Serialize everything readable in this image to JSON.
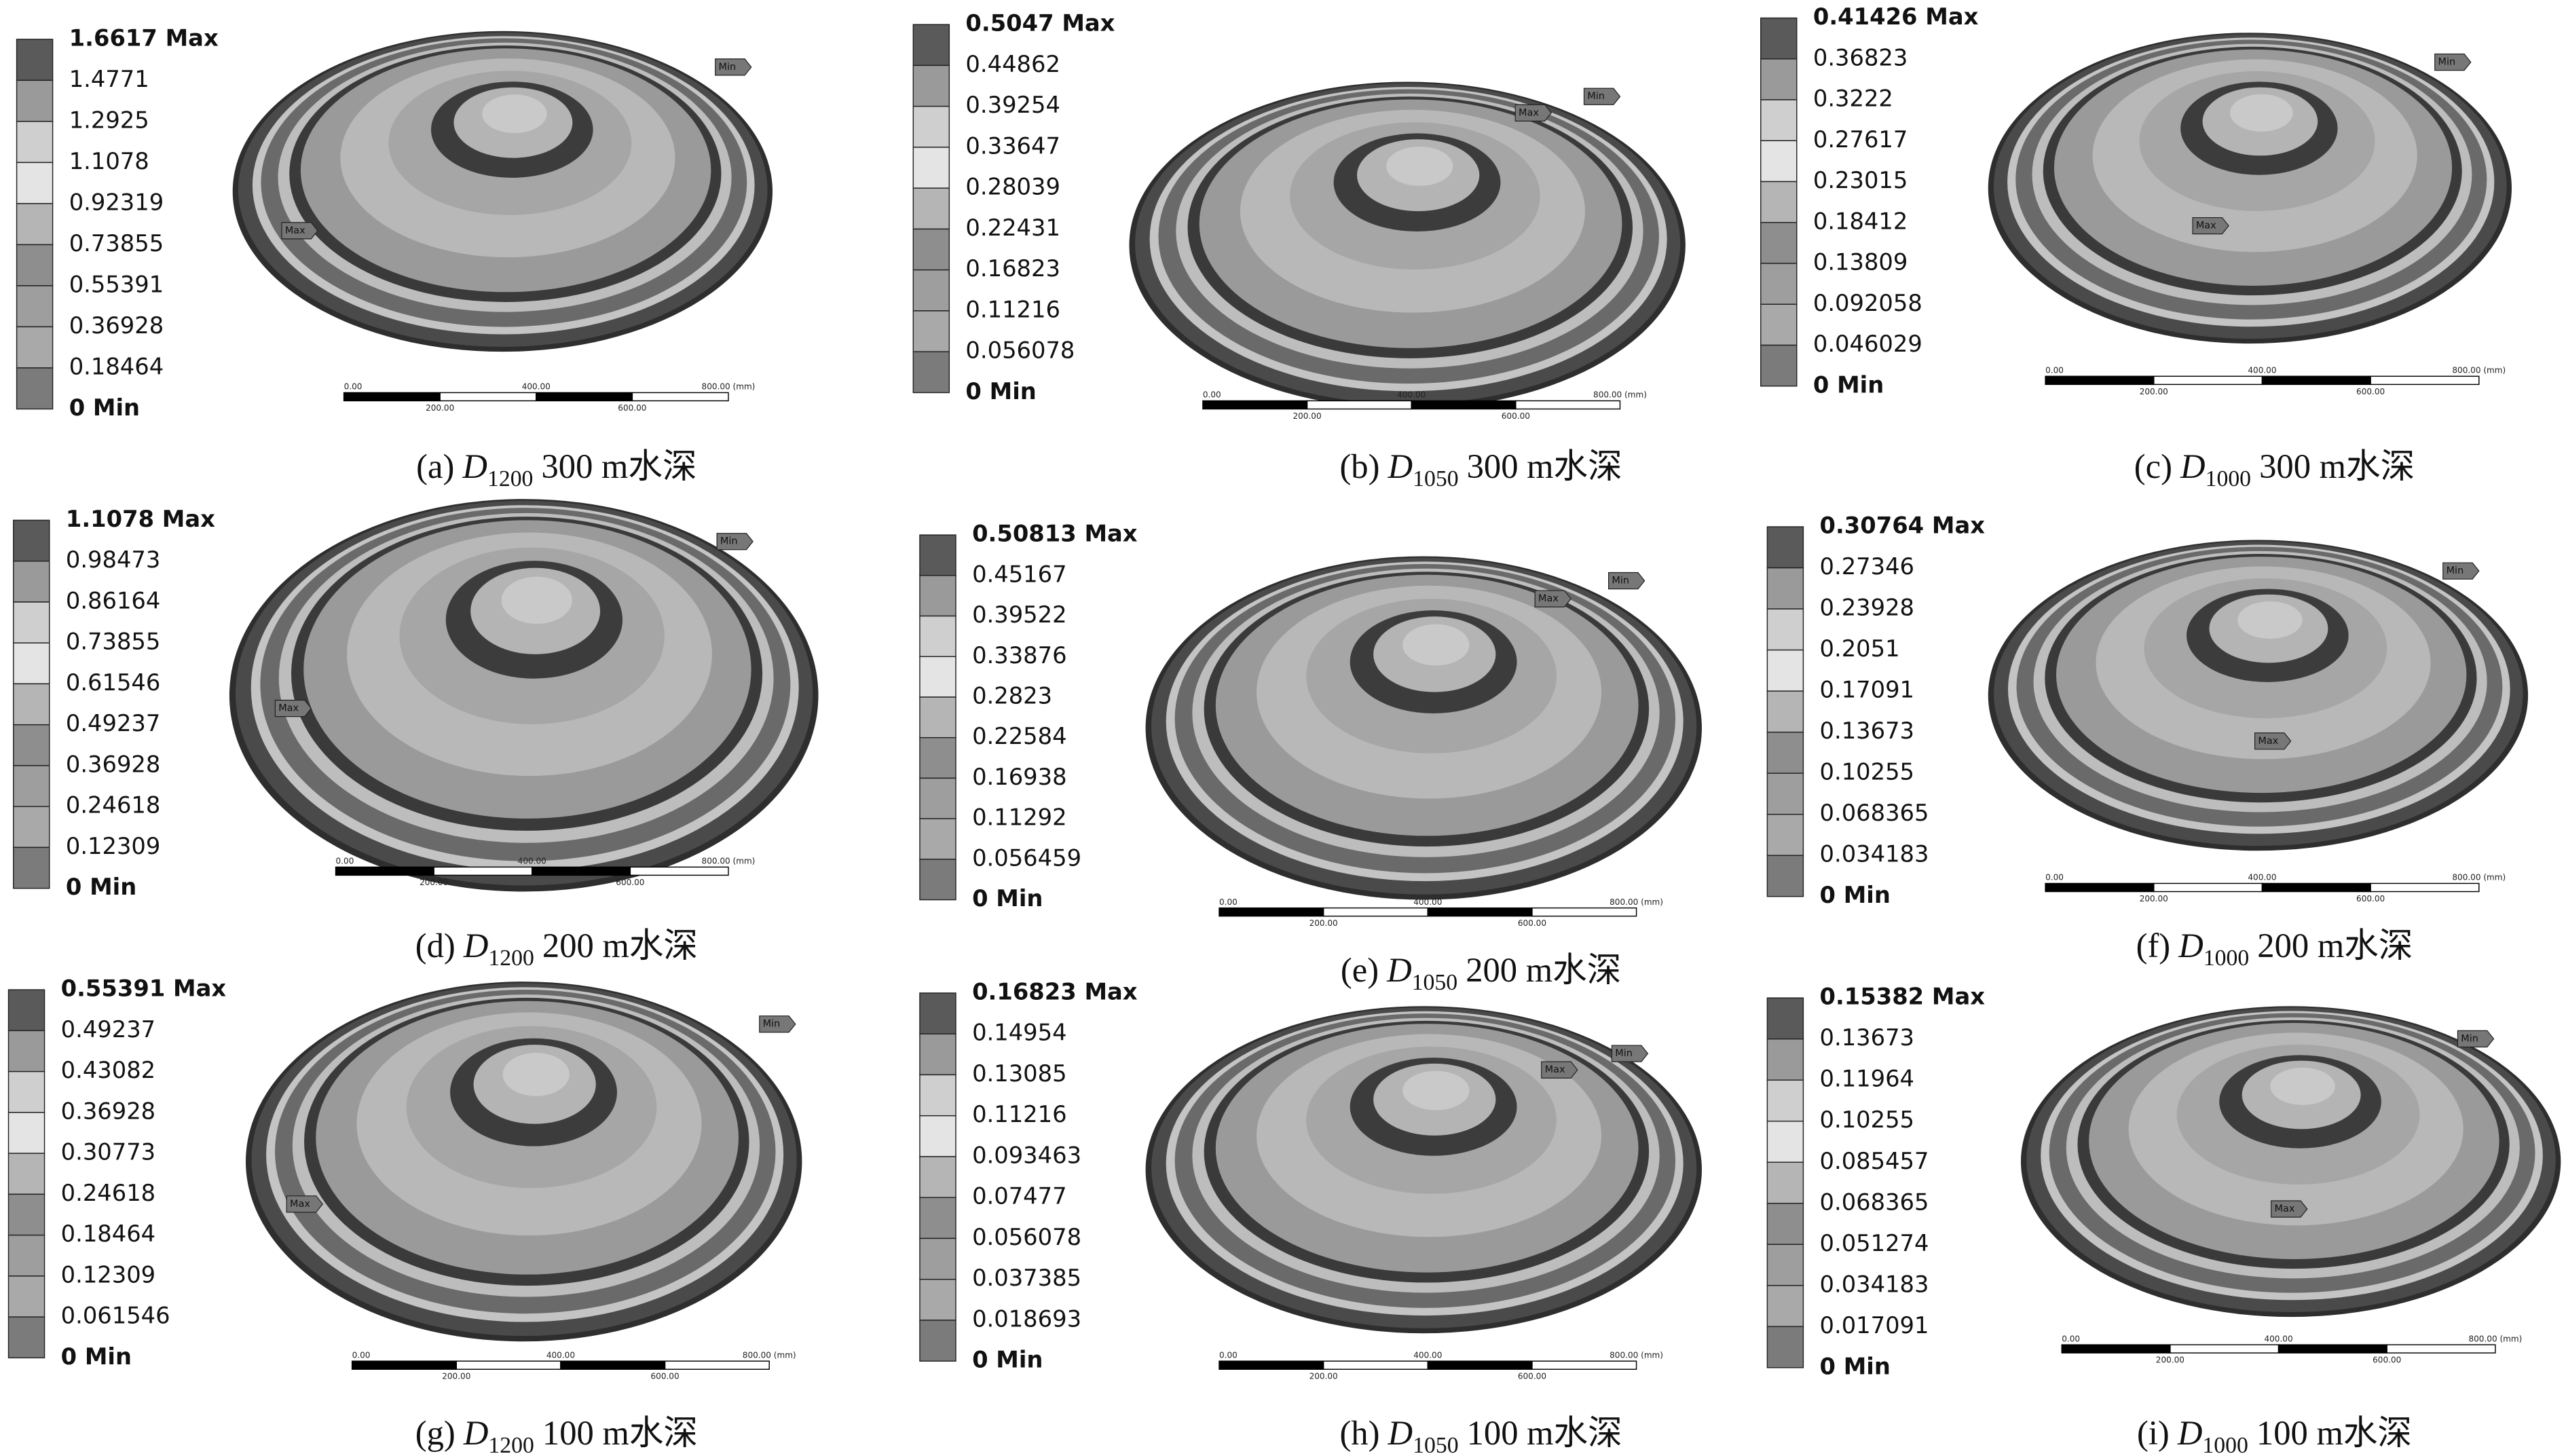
{
  "scale_bar": {
    "top_labels": [
      "0.00",
      "400.00",
      "800.00 (mm)"
    ],
    "bottom_labels": [
      "200.00",
      "600.00"
    ]
  },
  "panels": [
    {
      "legend": [
        "1.6617 Max",
        "1.4771",
        "1.2925",
        "1.1078",
        "0.92319",
        "0.73855",
        "0.55391",
        "0.36928",
        "0.18464",
        "0 Min"
      ],
      "markers": [
        "Min",
        "Max"
      ],
      "caption": {
        "label": "(a)",
        "symbol": "D",
        "subscript": "1200",
        "depth": "300 m水深"
      }
    },
    {
      "legend": [
        "0.5047 Max",
        "0.44862",
        "0.39254",
        "0.33647",
        "0.28039",
        "0.22431",
        "0.16823",
        "0.11216",
        "0.056078",
        "0 Min"
      ],
      "markers": [
        "Min",
        "Max"
      ],
      "caption": {
        "label": "(b)",
        "symbol": "D",
        "subscript": "1050",
        "depth": "300 m水深"
      }
    },
    {
      "legend": [
        "0.41426 Max",
        "0.36823",
        "0.3222",
        "0.27617",
        "0.23015",
        "0.18412",
        "0.13809",
        "0.092058",
        "0.046029",
        "0 Min"
      ],
      "markers": [
        "Min",
        "Max"
      ],
      "caption": {
        "label": "(c)",
        "symbol": "D",
        "subscript": "1000",
        "depth": "300 m水深"
      }
    },
    {
      "legend": [
        "1.1078 Max",
        "0.98473",
        "0.86164",
        "0.73855",
        "0.61546",
        "0.49237",
        "0.36928",
        "0.24618",
        "0.12309",
        "0 Min"
      ],
      "markers": [
        "Min",
        "Max"
      ],
      "caption": {
        "label": "(d)",
        "symbol": "D",
        "subscript": "1200",
        "depth": "200 m水深"
      }
    },
    {
      "legend": [
        "0.50813 Max",
        "0.45167",
        "0.39522",
        "0.33876",
        "0.2823",
        "0.22584",
        "0.16938",
        "0.11292",
        "0.056459",
        "0 Min"
      ],
      "markers": [
        "Min",
        "Max"
      ],
      "caption": {
        "label": "(e)",
        "symbol": "D",
        "subscript": "1050",
        "depth": "200 m水深"
      }
    },
    {
      "legend": [
        "0.30764 Max",
        "0.27346",
        "0.23928",
        "0.2051",
        "0.17091",
        "0.13673",
        "0.10255",
        "0.068365",
        "0.034183",
        "0 Min"
      ],
      "markers": [
        "Min",
        "Max"
      ],
      "caption": {
        "label": "(f)",
        "symbol": "D",
        "subscript": "1000",
        "depth": "200 m水深"
      }
    },
    {
      "legend": [
        "0.55391 Max",
        "0.49237",
        "0.43082",
        "0.36928",
        "0.30773",
        "0.24618",
        "0.18464",
        "0.12309",
        "0.061546",
        "0 Min"
      ],
      "markers": [
        "Min",
        "Max"
      ],
      "caption": {
        "label": "(g)",
        "symbol": "D",
        "subscript": "1200",
        "depth": "100 m水深"
      }
    },
    {
      "legend": [
        "0.16823 Max",
        "0.14954",
        "0.13085",
        "0.11216",
        "0.093463",
        "0.07477",
        "0.056078",
        "0.037385",
        "0.018693",
        "0 Min"
      ],
      "markers": [
        "Min",
        "Max"
      ],
      "caption": {
        "label": "(h)",
        "symbol": "D",
        "subscript": "1050",
        "depth": "100 m水深"
      }
    },
    {
      "legend": [
        "0.15382 Max",
        "0.13673",
        "0.11964",
        "0.10255",
        "0.085457",
        "0.068365",
        "0.051274",
        "0.034183",
        "0.017091",
        "0 Min"
      ],
      "markers": [
        "Min",
        "Max"
      ],
      "caption": {
        "label": "(i)",
        "symbol": "D",
        "subscript": "1000",
        "depth": "100 m水深"
      }
    }
  ]
}
